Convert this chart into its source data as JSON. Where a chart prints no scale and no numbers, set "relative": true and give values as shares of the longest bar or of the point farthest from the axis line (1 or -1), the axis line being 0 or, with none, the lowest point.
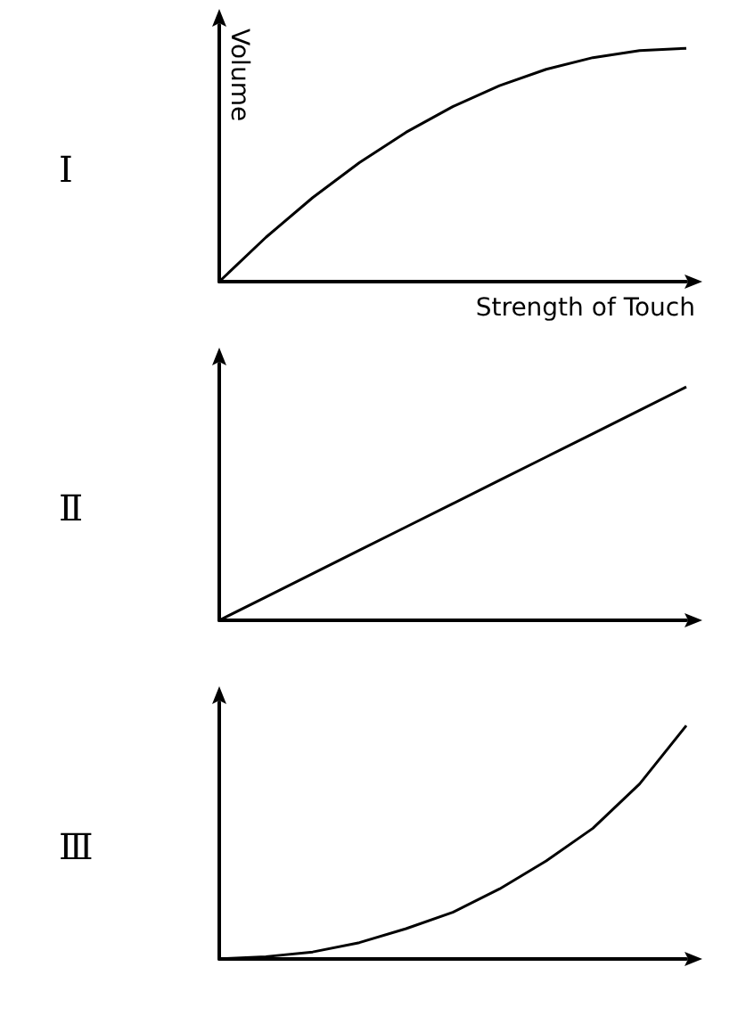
{
  "chart_data": [
    {
      "type": "line",
      "title": "Ⅰ",
      "xlabel": "Strength of Touch",
      "ylabel": "Volume",
      "relative": true,
      "marker": "none",
      "categories": [
        null,
        null,
        null,
        null,
        null,
        null,
        null,
        null,
        null,
        null,
        null
      ],
      "series": [
        {
          "color": "#000000",
          "values": [
            0,
            0.19,
            0.36,
            0.51,
            0.64,
            0.75,
            0.84,
            0.91,
            0.96,
            0.99,
            1
          ]
        }
      ]
    },
    {
      "type": "line",
      "title": "Ⅱ",
      "relative": true,
      "marker": "none",
      "categories": [
        null,
        null,
        null,
        null,
        null,
        null,
        null,
        null,
        null,
        null,
        null
      ],
      "series": [
        {
          "color": "#000000",
          "values": [
            0,
            0.1,
            0.2,
            0.3,
            0.4,
            0.5,
            0.6,
            0.7,
            0.8,
            0.9,
            1
          ]
        }
      ]
    },
    {
      "type": "line",
      "title": "Ⅲ",
      "relative": true,
      "marker": "none",
      "categories": [
        null,
        null,
        null,
        null,
        null,
        null,
        null,
        null,
        null,
        null,
        null
      ],
      "series": [
        {
          "color": "#000000",
          "values": [
            0,
            0.01,
            0.03,
            0.07,
            0.13,
            0.2,
            0.3,
            0.42,
            0.56,
            0.75,
            1
          ]
        }
      ]
    }
  ]
}
